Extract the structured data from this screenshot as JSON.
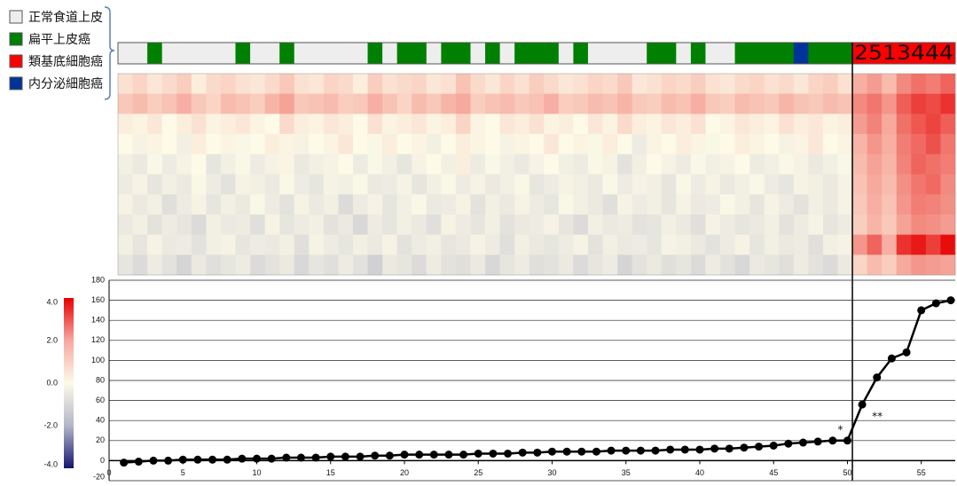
{
  "chart_data": [
    {
      "type": "heatmap",
      "legend": [
        {
          "name": "正常食道上皮",
          "color": "#eeeeee"
        },
        {
          "name": "扁平上皮癌",
          "color": "#008000"
        },
        {
          "name": "類基底細胞癌",
          "color": "#ff0000"
        },
        {
          "name": "内分泌細胞癌",
          "color": "#003399"
        }
      ],
      "sample_types": [
        "正常食道上皮",
        "正常食道上皮",
        "扁平上皮癌",
        "正常食道上皮",
        "正常食道上皮",
        "正常食道上皮",
        "正常食道上皮",
        "正常食道上皮",
        "扁平上皮癌",
        "正常食道上皮",
        "正常食道上皮",
        "扁平上皮癌",
        "正常食道上皮",
        "正常食道上皮",
        "正常食道上皮",
        "正常食道上皮",
        "正常食道上皮",
        "扁平上皮癌",
        "正常食道上皮",
        "扁平上皮癌",
        "扁平上皮癌",
        "正常食道上皮",
        "扁平上皮癌",
        "扁平上皮癌",
        "正常食道上皮",
        "扁平上皮癌",
        "正常食道上皮",
        "扁平上皮癌",
        "扁平上皮癌",
        "扁平上皮癌",
        "正常食道上皮",
        "扁平上皮癌",
        "正常食道上皮",
        "正常食道上皮",
        "正常食道上皮",
        "正常食道上皮",
        "扁平上皮癌",
        "扁平上皮癌",
        "正常食道上皮",
        "扁平上皮癌",
        "正常食道上皮",
        "正常食道上皮",
        "扁平上皮癌",
        "扁平上皮癌",
        "扁平上皮癌",
        "扁平上皮癌",
        "内分泌細胞癌",
        "扁平上皮癌",
        "扁平上皮癌",
        "扁平上皮癌",
        "類基底細胞癌",
        "類基底細胞癌",
        "類基底細胞癌",
        "類基底細胞癌",
        "類基底細胞癌",
        "類基底細胞癌",
        "類基底細胞癌"
      ],
      "strip_label": "2513444",
      "values": [
        [
          0.4,
          0.6,
          0.3,
          0.5,
          0.7,
          0.2,
          0.5,
          0.6,
          0.4,
          0.3,
          0.5,
          0.8,
          0.4,
          0.3,
          0.6,
          0.5,
          0.2,
          0.7,
          0.4,
          0.5,
          0.6,
          0.3,
          0.4,
          0.9,
          0.5,
          0.3,
          0.6,
          0.4,
          0.7,
          0.5,
          0.3,
          0.4,
          0.6,
          0.5,
          0.8,
          0.3,
          0.4,
          0.6,
          0.5,
          0.7,
          0.4,
          0.3,
          0.5,
          0.6,
          0.4,
          0.5,
          0.3,
          0.6,
          0.7,
          0.4,
          1.2,
          1.5,
          1.0,
          1.8,
          2.2,
          2.0,
          2.4
        ],
        [
          0.8,
          1.0,
          0.7,
          0.9,
          1.2,
          0.8,
          0.6,
          1.0,
          0.9,
          0.7,
          1.1,
          1.4,
          0.8,
          0.9,
          1.0,
          0.7,
          0.8,
          1.2,
          0.9,
          0.6,
          1.0,
          0.8,
          1.1,
          1.3,
          0.7,
          0.9,
          1.0,
          0.8,
          0.9,
          1.2,
          0.7,
          0.8,
          1.0,
          0.9,
          1.1,
          0.8,
          0.7,
          1.0,
          0.9,
          1.2,
          0.8,
          0.7,
          1.0,
          0.9,
          0.8,
          1.1,
          0.9,
          0.8,
          1.0,
          0.9,
          1.8,
          2.1,
          1.6,
          2.5,
          3.0,
          2.8,
          3.2
        ],
        [
          0.2,
          0.1,
          0.3,
          0.0,
          0.2,
          0.4,
          0.1,
          0.2,
          0.3,
          0.1,
          0.0,
          0.5,
          0.2,
          0.1,
          0.3,
          0.2,
          0.0,
          0.4,
          0.1,
          0.2,
          0.3,
          0.1,
          0.2,
          0.6,
          0.1,
          0.0,
          0.3,
          0.2,
          0.4,
          0.1,
          0.2,
          0.0,
          0.3,
          0.1,
          0.5,
          0.2,
          0.1,
          0.3,
          0.2,
          0.4,
          0.0,
          0.1,
          0.3,
          0.2,
          0.1,
          0.4,
          0.2,
          0.3,
          0.1,
          0.2,
          1.5,
          1.9,
          1.3,
          2.2,
          2.6,
          2.9,
          2.5
        ],
        [
          0.0,
          -0.2,
          0.1,
          0.0,
          -0.3,
          0.2,
          0.0,
          0.1,
          -0.1,
          0.0,
          0.2,
          0.1,
          -0.2,
          0.0,
          0.1,
          0.3,
          0.0,
          -0.1,
          0.2,
          0.0,
          0.1,
          -0.3,
          0.0,
          0.2,
          0.1,
          0.0,
          -0.2,
          0.1,
          0.0,
          0.3,
          0.0,
          0.1,
          -0.1,
          0.2,
          0.0,
          -0.4,
          0.1,
          0.0,
          0.2,
          0.1,
          -0.1,
          0.0,
          0.2,
          0.1,
          0.0,
          -0.2,
          0.1,
          0.3,
          0.0,
          0.1,
          1.1,
          1.6,
          1.2,
          2.0,
          2.3,
          2.7,
          2.1
        ],
        [
          -0.3,
          -0.5,
          -0.1,
          -0.4,
          -0.2,
          0.0,
          -0.6,
          -0.3,
          -0.1,
          -0.4,
          -0.2,
          0.1,
          -0.5,
          -0.3,
          -0.2,
          0.0,
          -0.4,
          -0.1,
          -0.3,
          -0.6,
          -0.2,
          0.0,
          -0.3,
          0.2,
          -0.4,
          -0.1,
          -0.3,
          -0.5,
          -0.2,
          0.0,
          -0.3,
          -0.4,
          -0.1,
          -0.2,
          -0.7,
          -0.3,
          0.0,
          -0.2,
          -0.4,
          -0.1,
          -0.3,
          -0.2,
          0.0,
          -0.4,
          -0.3,
          -0.1,
          -0.2,
          -0.5,
          -0.3,
          -0.1,
          1.0,
          1.4,
          1.1,
          1.9,
          2.4,
          2.2,
          2.0
        ],
        [
          -0.4,
          -0.2,
          -0.6,
          -0.3,
          -0.5,
          -0.1,
          -0.4,
          -0.7,
          -0.2,
          -0.3,
          -0.5,
          -0.1,
          -0.4,
          -0.6,
          -0.2,
          -0.3,
          -0.1,
          -0.5,
          -0.4,
          -0.2,
          -0.6,
          -0.3,
          -0.1,
          -0.4,
          -0.2,
          -0.5,
          -0.3,
          -0.1,
          -0.6,
          -0.4,
          -0.2,
          -0.3,
          -0.5,
          -0.1,
          -0.4,
          -0.2,
          -0.3,
          -0.6,
          -0.1,
          -0.4,
          -0.2,
          -0.5,
          -0.3,
          -0.1,
          -0.4,
          -0.6,
          -0.2,
          -0.3,
          -0.5,
          -0.2,
          0.9,
          1.3,
          1.0,
          1.7,
          2.1,
          2.3,
          1.8
        ],
        [
          -0.2,
          -0.5,
          -0.3,
          -0.8,
          -0.4,
          -0.2,
          -0.6,
          -0.3,
          -0.5,
          -0.1,
          -0.4,
          -0.7,
          -0.2,
          -0.5,
          -0.3,
          -0.9,
          -0.4,
          -0.2,
          -0.6,
          -0.3,
          -0.1,
          -0.5,
          -0.4,
          -0.2,
          -0.7,
          -0.3,
          -0.5,
          -0.2,
          -0.4,
          -0.6,
          -0.1,
          -0.3,
          -0.5,
          -0.8,
          -0.2,
          -0.4,
          -0.3,
          -0.6,
          -0.2,
          -0.5,
          -0.4,
          -0.1,
          -0.3,
          -0.6,
          -0.2,
          -0.4,
          -0.7,
          -0.3,
          -0.5,
          -0.2,
          0.8,
          1.2,
          0.9,
          1.6,
          2.0,
          1.9,
          1.7
        ],
        [
          -0.5,
          -0.3,
          -0.7,
          -0.4,
          -0.6,
          -0.9,
          -0.3,
          -0.5,
          -0.4,
          -0.8,
          -0.2,
          -0.6,
          -0.4,
          -0.3,
          -0.7,
          -0.5,
          -1.0,
          -0.4,
          -0.6,
          -0.3,
          -0.5,
          -0.8,
          -0.2,
          -0.4,
          -0.6,
          -0.3,
          -0.7,
          -0.5,
          -0.4,
          -0.2,
          -0.6,
          -0.9,
          -0.3,
          -0.5,
          -0.4,
          -0.7,
          -0.6,
          -0.3,
          -0.5,
          -0.8,
          -0.2,
          -0.4,
          -0.6,
          -0.5,
          -0.3,
          -0.7,
          -0.4,
          -0.2,
          -0.6,
          -0.4,
          0.7,
          1.1,
          0.8,
          1.4,
          1.8,
          1.7,
          1.5
        ],
        [
          -0.3,
          -0.6,
          -0.2,
          -0.5,
          -0.4,
          -0.7,
          -0.3,
          -0.2,
          -0.6,
          -0.4,
          -0.5,
          -0.3,
          -0.8,
          -0.2,
          -0.4,
          -0.6,
          -0.3,
          -0.5,
          -0.2,
          -0.7,
          -0.4,
          -0.3,
          -0.6,
          -0.5,
          -0.2,
          -0.4,
          -0.8,
          -0.3,
          -0.5,
          -0.6,
          -0.4,
          -0.2,
          -0.7,
          -0.3,
          -0.5,
          -0.4,
          -0.6,
          -0.2,
          -0.3,
          -0.5,
          -0.7,
          -0.4,
          -0.2,
          -0.6,
          -0.3,
          -0.5,
          -0.4,
          -0.8,
          -0.3,
          -0.2,
          1.6,
          2.4,
          1.2,
          3.2,
          3.6,
          3.0,
          3.8
        ],
        [
          -0.6,
          -0.9,
          -0.4,
          -0.7,
          -1.1,
          -0.5,
          -0.8,
          -0.6,
          -0.4,
          -0.9,
          -0.7,
          -0.5,
          -1.0,
          -0.6,
          -0.8,
          -0.4,
          -0.7,
          -1.2,
          -0.5,
          -0.6,
          -0.9,
          -0.4,
          -0.7,
          -0.8,
          -0.5,
          -1.0,
          -0.6,
          -0.4,
          -0.8,
          -0.7,
          -0.5,
          -0.9,
          -0.6,
          -0.4,
          -1.1,
          -0.7,
          -0.5,
          -0.8,
          -0.6,
          -0.9,
          -0.4,
          -0.7,
          -1.0,
          -0.5,
          -0.6,
          -0.8,
          -0.4,
          -0.7,
          -0.9,
          -0.5,
          0.6,
          1.0,
          0.7,
          1.3,
          1.6,
          1.5,
          1.4
        ]
      ],
      "clim": [
        -4,
        4
      ],
      "cticks": [
        {
          "value": 4,
          "label": "4.0"
        },
        {
          "value": 2,
          "label": "2.0"
        },
        {
          "value": 0,
          "label": "0.0"
        },
        {
          "value": -2,
          "label": "-2.0"
        },
        {
          "value": -4,
          "label": "-4.0"
        }
      ]
    },
    {
      "type": "line",
      "color": "#000000",
      "x": [
        1,
        2,
        3,
        4,
        5,
        6,
        7,
        8,
        9,
        10,
        11,
        12,
        13,
        14,
        15,
        16,
        17,
        18,
        19,
        20,
        21,
        22,
        23,
        24,
        25,
        26,
        27,
        28,
        29,
        30,
        31,
        32,
        33,
        34,
        35,
        36,
        37,
        38,
        39,
        40,
        41,
        42,
        43,
        44,
        45,
        46,
        47,
        48,
        49,
        50,
        51,
        52,
        53,
        54,
        55,
        56,
        57
      ],
      "values": [
        -2,
        -1,
        0,
        0,
        1,
        1,
        1,
        1,
        2,
        2,
        2,
        3,
        3,
        3,
        4,
        4,
        4,
        5,
        5,
        6,
        6,
        6,
        6,
        6,
        7,
        7,
        7,
        8,
        8,
        9,
        9,
        9,
        9,
        10,
        10,
        10,
        10,
        11,
        11,
        11,
        12,
        12,
        13,
        14,
        15,
        17,
        18,
        19,
        20,
        20,
        56,
        83,
        102,
        108,
        150,
        157,
        160
      ],
      "xlim": [
        0,
        57.3
      ],
      "xticks": [
        0,
        5,
        10,
        15,
        20,
        25,
        30,
        35,
        40,
        45,
        50,
        55
      ],
      "ylim": [
        -20,
        180
      ],
      "yticks": [
        -20,
        0,
        20,
        40,
        60,
        80,
        100,
        120,
        140,
        160,
        180
      ],
      "grid": true,
      "annotations": [
        {
          "text": "*",
          "x": 50
        },
        {
          "text": "**",
          "x": 51
        }
      ]
    }
  ]
}
